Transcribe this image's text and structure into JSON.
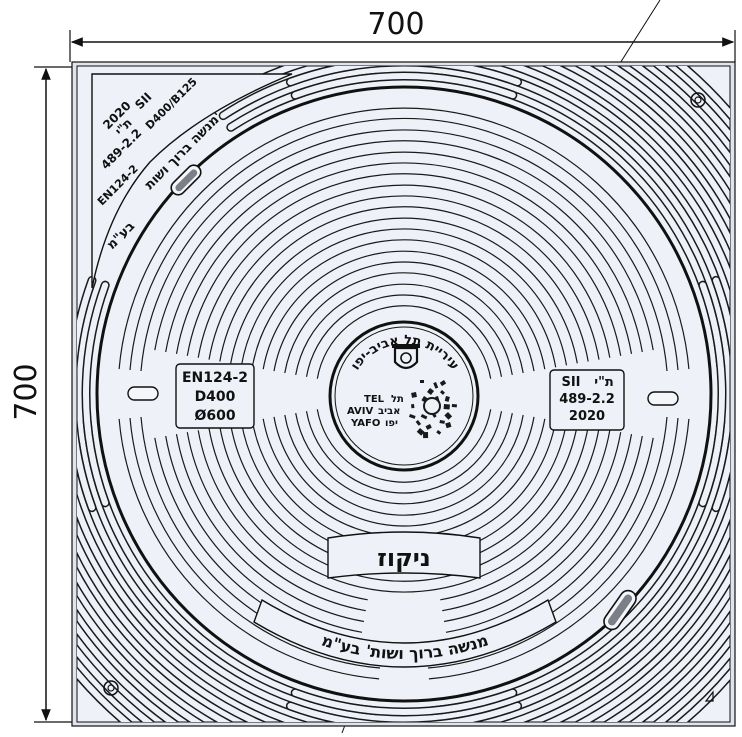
{
  "dimensions": {
    "width_label": "700",
    "height_label": "700"
  },
  "cover": {
    "standard_left": [
      "EN124-2",
      "D400",
      "Ø600"
    ],
    "standard_right": [
      "SII",
      "ת\"י",
      "489-2.2",
      "2020"
    ],
    "center_ring_text": "עיריית תל אביב-יפו",
    "center_logo_text": [
      "TEL",
      "תל",
      "AVIV",
      "אביב",
      "YAFO",
      "יפו"
    ],
    "plaque_text": "ניקוז",
    "arc_text": "מנשה ברוך ושות' בע\"מ",
    "corner_text": [
      "2020",
      "SII",
      "ת\"י",
      "489-2.2",
      "D400/B125",
      "EN124-2",
      "מנשה ברוך ושות'",
      "בע\"מ"
    ]
  },
  "colors": {
    "cover_fill": "#eef1f7",
    "line": "#1a1a1a",
    "slot_fill": "#f4f6fa"
  }
}
